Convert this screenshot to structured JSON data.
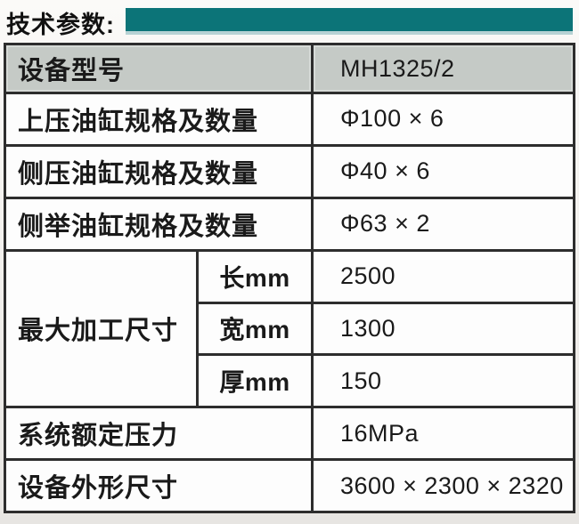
{
  "page": {
    "title": "技术参数:"
  },
  "colors": {
    "accent_bar": "#0c7478",
    "accent_bar_edge": "#b7d2d4",
    "header_row_bg": "#c5cac6",
    "grid_border": "#2d2d2d",
    "cell_bg": "#fdfdfd",
    "text": "#1a1a1a"
  },
  "table": {
    "header": {
      "label": "设备型号",
      "value": "MH1325/2"
    },
    "rows": [
      {
        "label": "上压油缸规格及数量",
        "value": "Φ100 × 6"
      },
      {
        "label": "侧压油缸规格及数量",
        "value": "Φ40 × 6"
      },
      {
        "label": "侧举油缸规格及数量",
        "value": "Φ63 × 2"
      }
    ],
    "dimension_group": {
      "label": "最大加工尺寸",
      "rows": [
        {
          "sub_label": "长mm",
          "value": "2500"
        },
        {
          "sub_label": "宽mm",
          "value": "1300"
        },
        {
          "sub_label": "厚mm",
          "value": "150"
        }
      ]
    },
    "footer_rows": [
      {
        "label": "系统额定压力",
        "value": "16MPa"
      },
      {
        "label": "设备外形尺寸",
        "value": "3600 × 2300 × 2320"
      }
    ]
  }
}
